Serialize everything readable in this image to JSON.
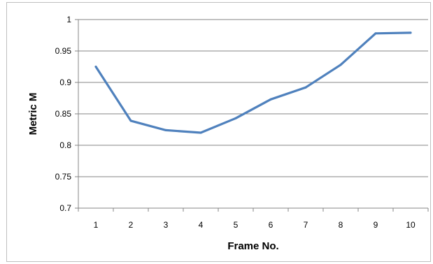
{
  "chart_data": {
    "type": "line",
    "x": [
      1,
      2,
      3,
      4,
      5,
      6,
      7,
      8,
      9,
      10
    ],
    "series": [
      {
        "values": [
          0.925,
          0.839,
          0.824,
          0.82,
          0.843,
          0.873,
          0.892,
          0.928,
          0.978,
          0.979
        ]
      }
    ],
    "xlabel": "Frame No.",
    "ylabel": "Metric M",
    "ylim": [
      0.7,
      1
    ],
    "yticks": [
      "0.7",
      "0.75",
      "0.8",
      "0.85",
      "0.9",
      "0.95",
      "1"
    ],
    "xticks": [
      "1",
      "2",
      "3",
      "4",
      "5",
      "6",
      "7",
      "8",
      "9",
      "10"
    ],
    "grid": "horizontal",
    "colors": {
      "line": "#4f81bd",
      "grid": "#868686",
      "axis": "#868686"
    }
  }
}
